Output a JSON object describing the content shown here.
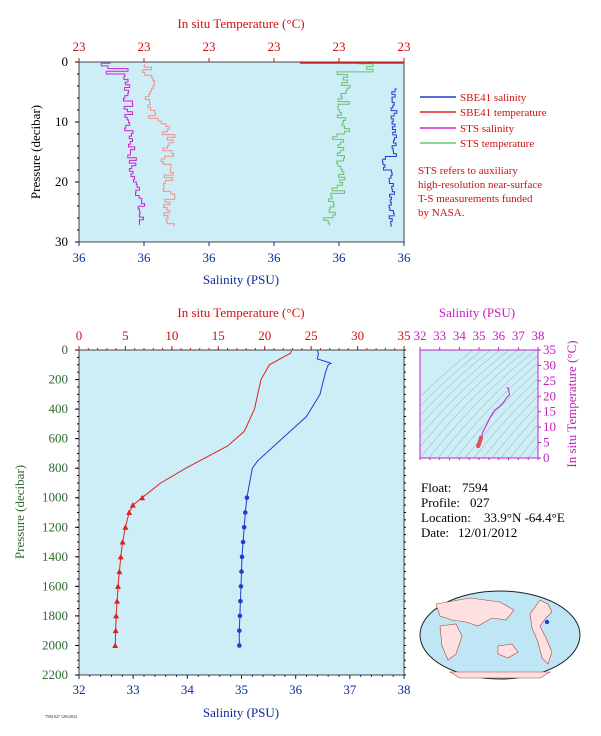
{
  "colors": {
    "plot_bg": "#cdeef7",
    "sbe41_salinity": "#1f3fd0",
    "sbe41_temperature": "#e02020",
    "sts_salinity": "#d020d0",
    "sts_temperature": "#6cc06c",
    "sts_temp_light": "#f0908a",
    "red_text": "#d01010",
    "blue_text": "#0b2a9a",
    "magenta_text": "#c020c0",
    "green_text": "#2e6a2e"
  },
  "top_panel": {
    "title_top": "In situ Temperature (°C)",
    "top_ticks": [
      "23",
      "23",
      "23",
      "23",
      "23",
      "23"
    ],
    "bottom_ticks": [
      "36",
      "36",
      "36",
      "36",
      "36",
      "36"
    ],
    "left_ticks": [
      "0",
      "10",
      "20",
      "30"
    ],
    "ylabel": "Pressure (decibar)",
    "xlabel": "Salinity (PSU)",
    "legend": [
      {
        "label": "SBE41 salinity",
        "key": "sbe41_salinity"
      },
      {
        "label": "SBE41 temperature",
        "key": "sbe41_temperature"
      },
      {
        "label": "STS salinity",
        "key": "sts_salinity"
      },
      {
        "label": "STS temperature",
        "key": "sts_temperature"
      }
    ],
    "note_lines": [
      "STS refers to auxiliary",
      "high-resolution near-surface",
      "T-S measurements funded",
      "by NASA."
    ]
  },
  "bottom_panel": {
    "title_top": "In situ Temperature (°C)",
    "top_ticks": [
      "0",
      "5",
      "10",
      "15",
      "20",
      "25",
      "30",
      "35"
    ],
    "bottom_ticks": [
      "32",
      "33",
      "34",
      "35",
      "36",
      "37",
      "38"
    ],
    "left_ticks": [
      "0",
      "200",
      "400",
      "600",
      "800",
      "1000",
      "1200",
      "1400",
      "1600",
      "1800",
      "2000",
      "2200"
    ],
    "ylabel": "Pressure (decibar)",
    "xlabel": "Salinity (PSU)",
    "footnote": "7594 027 12012012"
  },
  "ts_inset": {
    "title": "Salinity (PSU)",
    "x_ticks": [
      "32",
      "33",
      "34",
      "35",
      "36",
      "37",
      "38"
    ],
    "y_ticks": [
      "0",
      "5",
      "10",
      "15",
      "20",
      "25",
      "30",
      "35"
    ],
    "ylabel": "In situ Temperature (°C)"
  },
  "info": {
    "float_label": "Float:",
    "float_value": "7594",
    "profile_label": "Profile:",
    "profile_value": "027",
    "location_label": "Location:",
    "location_value": "33.9°N  -64.4°E",
    "date_label": "Date:",
    "date_value": "12/01/2012"
  },
  "chart_data": [
    {
      "type": "line",
      "title": "",
      "xlabel": "Salinity (PSU)",
      "x2label": "In situ Temperature (°C)",
      "ylabel": "Pressure (decibar)",
      "ylim": [
        30,
        0
      ],
      "series": [
        {
          "name": "SBE41 salinity",
          "x": [
            36.6,
            36.6,
            36.59,
            36.6,
            36.6,
            36.6
          ],
          "y": [
            2,
            6,
            10,
            16,
            18,
            28
          ]
        },
        {
          "name": "STS temperature",
          "x": [
            36.55,
            36.5,
            36.52,
            36.49,
            36.5,
            36.48,
            36.5
          ],
          "y": [
            3,
            6,
            10,
            15,
            20,
            24,
            27
          ]
        },
        {
          "name": "STS salinity",
          "x": [
            36.05,
            36.07,
            36.06,
            36.05,
            36.07,
            36.05,
            36.06
          ],
          "y": [
            1,
            5,
            10,
            15,
            20,
            24,
            28
          ]
        }
      ]
    },
    {
      "type": "line",
      "title": "",
      "xlabel": "Salinity (PSU)",
      "x2label": "In situ Temperature (°C)",
      "ylabel": "Pressure (decibar)",
      "xlim": [
        32,
        38
      ],
      "x2lim": [
        0,
        35
      ],
      "ylim": [
        2200,
        0
      ],
      "series": [
        {
          "name": "SBE41 salinity",
          "p": [
            0,
            25,
            60,
            90,
            100,
            150,
            300,
            450,
            550,
            650,
            750,
            800,
            900,
            1000,
            1100,
            1200,
            1300,
            1400,
            1500,
            1600,
            1700,
            1800,
            1900,
            2000
          ],
          "v": [
            36.4,
            36.42,
            36.4,
            36.65,
            36.6,
            36.55,
            36.45,
            36.2,
            35.9,
            35.6,
            35.3,
            35.2,
            35.15,
            35.1,
            35.07,
            35.05,
            35.03,
            35.01,
            35.0,
            34.99,
            34.98,
            34.97,
            34.96,
            34.96
          ]
        },
        {
          "name": "SBE41 temperature",
          "p": [
            0,
            20,
            100,
            200,
            400,
            550,
            650,
            800,
            900,
            1000,
            1050,
            1100,
            1200,
            1300,
            1400,
            1500,
            1600,
            1700,
            1800,
            1900,
            2000
          ],
          "v": [
            22.9,
            22.8,
            20.5,
            19.6,
            18.9,
            17.8,
            16.0,
            11.5,
            8.8,
            6.8,
            5.8,
            5.4,
            5.0,
            4.7,
            4.5,
            4.35,
            4.2,
            4.1,
            4.0,
            3.95,
            3.9
          ]
        }
      ]
    },
    {
      "type": "scatter",
      "title": "",
      "xlabel": "Salinity (PSU)",
      "ylabel": "In situ Temperature (°C)",
      "xlim": [
        32,
        38
      ],
      "ylim": [
        0,
        35
      ],
      "series": [
        {
          "name": "T-S",
          "x": [
            36.4,
            36.5,
            36.55,
            36.4,
            36.3,
            36.1,
            35.8,
            35.6,
            35.4,
            35.2,
            35.1,
            35.05,
            35.0,
            34.96
          ],
          "y": [
            22.9,
            22.5,
            20.5,
            19.5,
            18.5,
            17.0,
            15.5,
            13.5,
            11.0,
            8.5,
            6.5,
            5.5,
            4.5,
            3.9
          ]
        }
      ]
    }
  ]
}
